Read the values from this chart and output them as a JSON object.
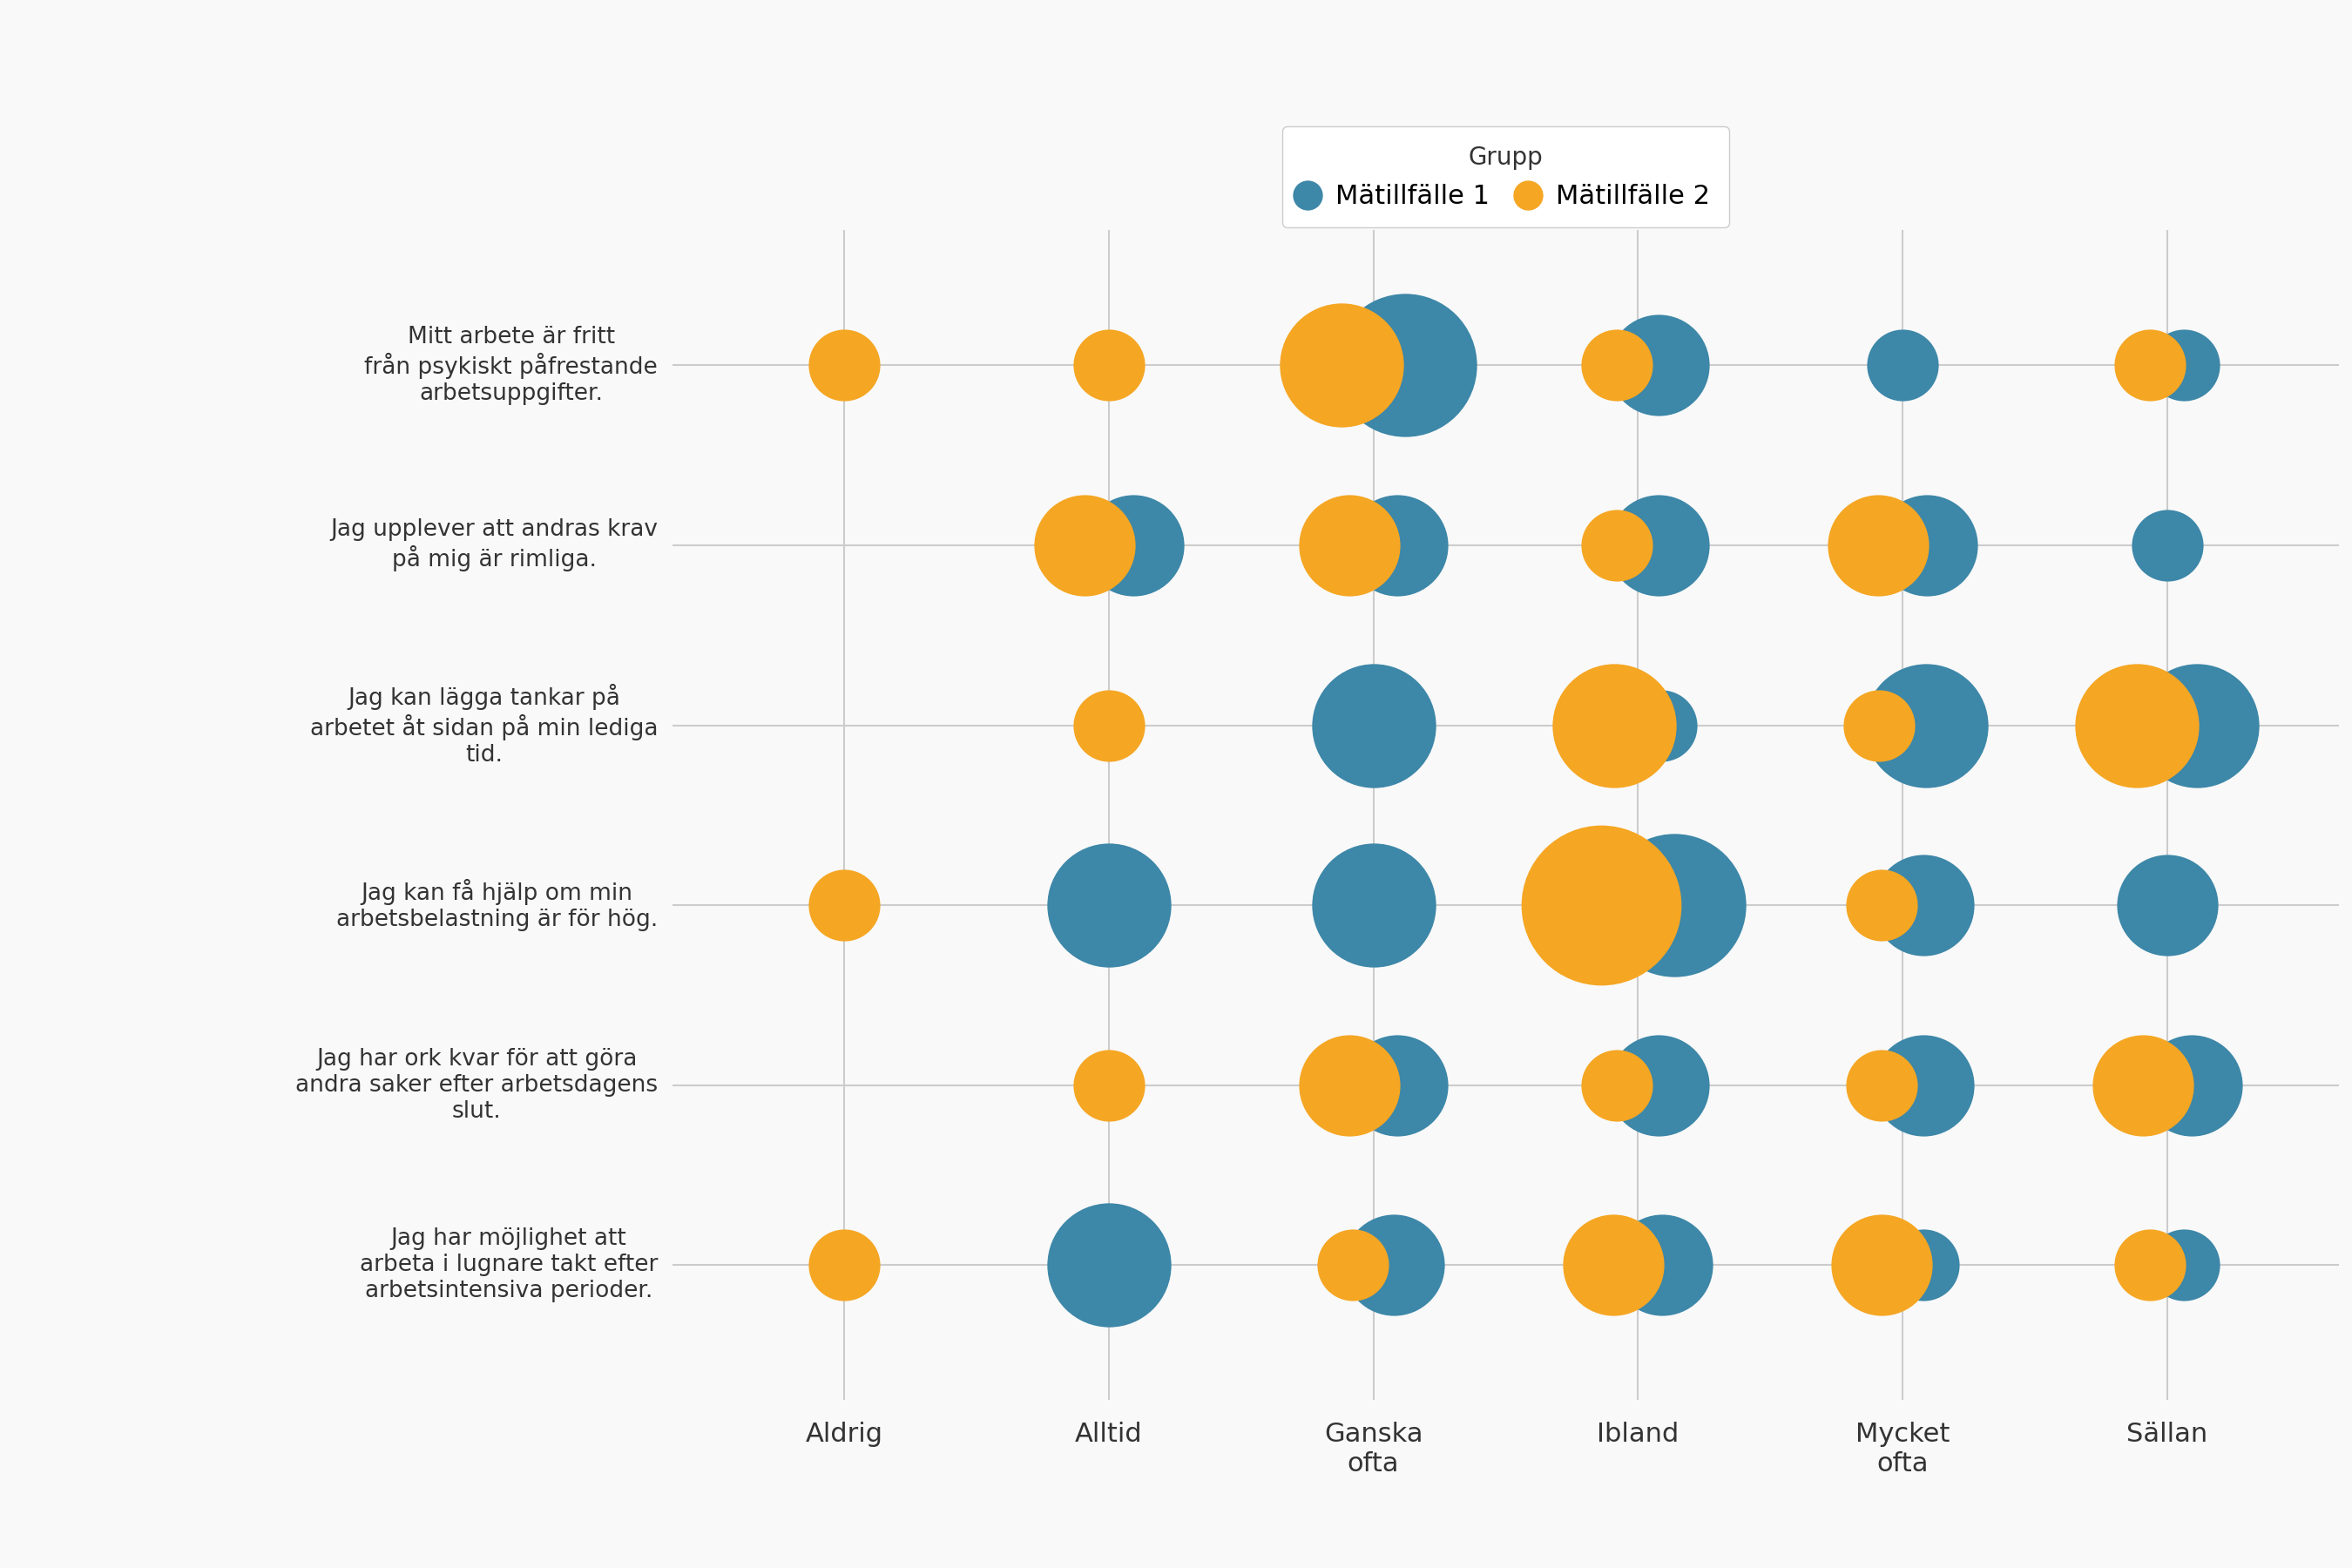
{
  "questions": [
    "Mitt arbete är fritt\nfrån psykiskt påfrestande\narbetsuppgifter.",
    "Jag upplever att andras krav\npå mig är rimliga.",
    "Jag kan lägga tankar på\narbetet åt sidan på min lediga\ntid.",
    "Jag kan få hjälp om min\narbetsbelastning är för hög.",
    "Jag har ork kvar för att göra\nandra saker efter arbetsdagens\nslut.",
    "Jag har möjlighet att\narbeta i lugnare takt efter\narbetsintensiva perioder."
  ],
  "categories": [
    "Aldrig",
    "Alltid",
    "Ganska\nofta",
    "Ibland",
    "Mycket\nofta",
    "Sällan"
  ],
  "color_m1": "#3d87a8",
  "color_m2": "#f5a623",
  "background_color": "#f9f9f9",
  "grid_color": "#cccccc",
  "data_m1": [
    [
      0,
      0,
      4,
      2,
      1,
      1
    ],
    [
      0,
      2,
      2,
      2,
      2,
      1
    ],
    [
      0,
      0,
      3,
      1,
      3,
      3
    ],
    [
      0,
      3,
      3,
      4,
      2,
      2
    ],
    [
      0,
      0,
      2,
      2,
      2,
      2
    ],
    [
      0,
      3,
      2,
      2,
      1,
      1
    ]
  ],
  "data_m2": [
    [
      1,
      1,
      3,
      1,
      0,
      1
    ],
    [
      0,
      2,
      2,
      1,
      2,
      0
    ],
    [
      0,
      1,
      0,
      3,
      1,
      3
    ],
    [
      1,
      0,
      0,
      5,
      1,
      0
    ],
    [
      0,
      1,
      2,
      1,
      1,
      2
    ],
    [
      1,
      0,
      1,
      2,
      2,
      1
    ]
  ],
  "scale_factor": 3500,
  "legend_title": "Grupp",
  "legend_m1": "Mätillfälle 1",
  "legend_m2": "Mätillfälle 2",
  "title_fontsize": 20,
  "tick_fontsize": 22,
  "ytick_fontsize": 19
}
